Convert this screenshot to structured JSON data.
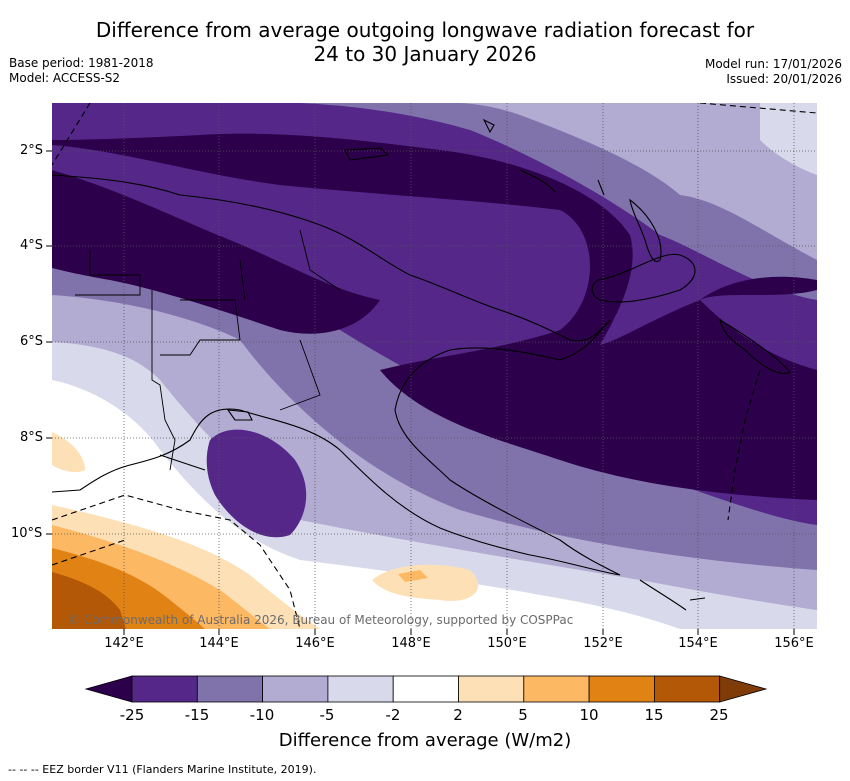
{
  "title_line1": "Difference from average outgoing longwave radiation forecast for",
  "title_line2": "24 to 30 January 2026",
  "meta_left": {
    "base_period": "Base period: 1981-2018",
    "model": "Model: ACCESS-S2"
  },
  "meta_right": {
    "model_run": "Model run: 17/01/2026",
    "issued": "Issued: 20/01/2026"
  },
  "lat_labels": [
    "2°S",
    "4°S",
    "6°S",
    "8°S",
    "10°S"
  ],
  "lon_labels": [
    "142°E",
    "144°E",
    "146°E",
    "148°E",
    "150°E",
    "152°E",
    "154°E",
    "156°E"
  ],
  "copyright": "© Commonwealth of Australia 2026, Bureau of Meteorology, supported by COSPPac",
  "colorbar": {
    "ticks": [
      "-25",
      "-15",
      "-10",
      "-5",
      "-2",
      "2",
      "5",
      "10",
      "15",
      "25"
    ],
    "colors": [
      "#2d004b",
      "#542788",
      "#8073ac",
      "#b2abd2",
      "#d8daeb",
      "#ffffff",
      "#fee0b6",
      "#fdb863",
      "#e08214",
      "#b35806",
      "#7f3b08"
    ],
    "title": "Difference from average (W/m2)"
  },
  "footer": "--  --  -- EEZ border V11 (Flanders Marine Institute, 2019)."
}
